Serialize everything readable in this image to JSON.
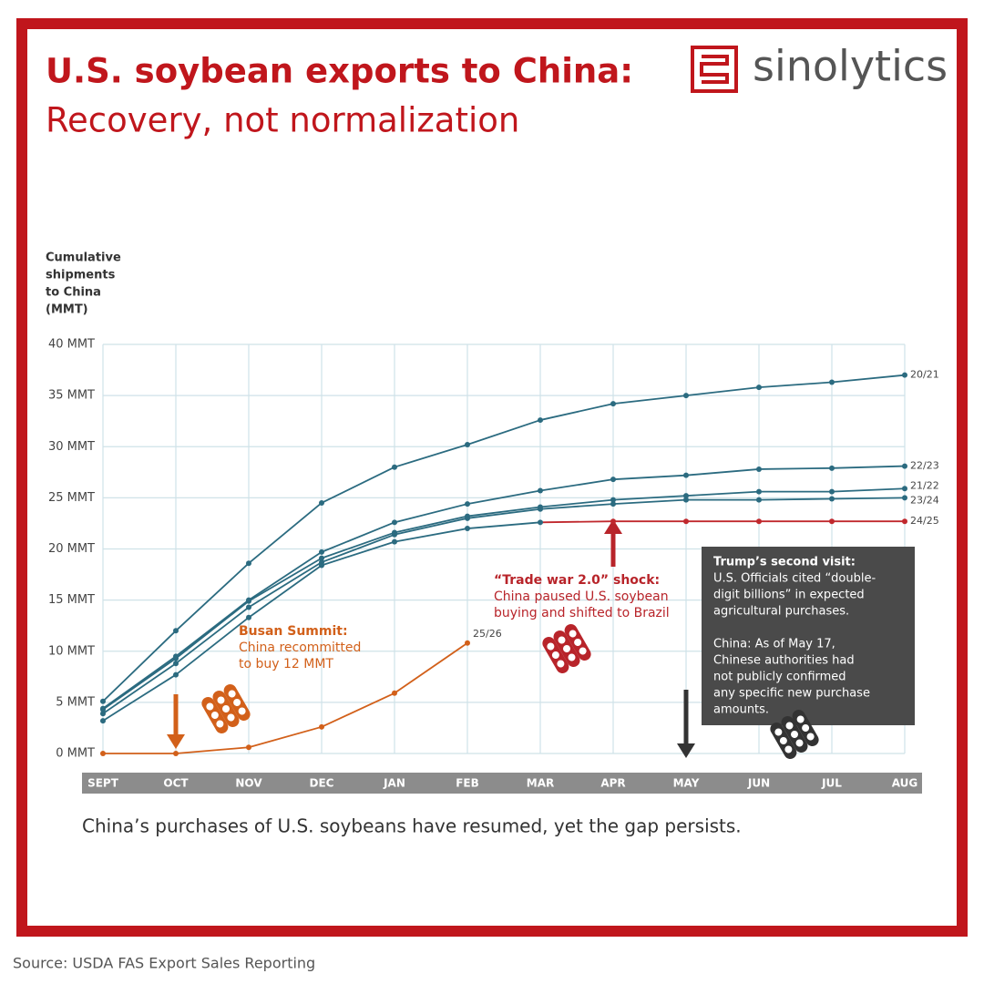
{
  "chart_data": {
    "type": "line",
    "title": "U.S. soybean exports to China:",
    "subtitle": "Recovery, not normalization",
    "brand": "sinolytics",
    "y_label": [
      "Cumulative",
      "shipments",
      "to China",
      "(MMT)"
    ],
    "categories": [
      "SEPT",
      "OCT",
      "NOV",
      "DEC",
      "JAN",
      "FEB",
      "MAR",
      "APR",
      "MAY",
      "JUN",
      "JUL",
      "AUG"
    ],
    "ylim": [
      0,
      40
    ],
    "yticks": [
      {
        "value": 0,
        "label": "0 MMT"
      },
      {
        "value": 5,
        "label": "5 MMT"
      },
      {
        "value": 10,
        "label": "10 MMT"
      },
      {
        "value": 15,
        "label": "15 MMT"
      },
      {
        "value": 20,
        "label": "20 MMT"
      },
      {
        "value": 25,
        "label": "25 MMT"
      },
      {
        "value": 30,
        "label": "30 MMT"
      },
      {
        "value": 35,
        "label": "35 MMT"
      },
      {
        "value": 40,
        "label": "40 MMT"
      }
    ],
    "grid": true,
    "series": [
      {
        "name": "20/21",
        "color": "#2b6b80",
        "values": [
          5.1,
          12.0,
          18.6,
          24.5,
          28.0,
          30.2,
          32.6,
          34.2,
          35.0,
          35.8,
          36.3,
          37.0
        ]
      },
      {
        "name": "22/23",
        "color": "#2b6b80",
        "values": [
          4.4,
          9.5,
          15.0,
          19.7,
          22.6,
          24.4,
          25.7,
          26.8,
          27.2,
          27.8,
          27.9,
          28.1
        ]
      },
      {
        "name": "21/22",
        "color": "#2b6b80",
        "values": [
          4.3,
          9.3,
          14.9,
          19.1,
          21.6,
          23.2,
          24.1,
          24.8,
          25.2,
          25.6,
          25.6,
          25.9
        ]
      },
      {
        "name": "23/24",
        "color": "#2b6b80",
        "values": [
          3.9,
          8.8,
          14.3,
          18.7,
          21.4,
          23.0,
          23.9,
          24.4,
          24.8,
          24.8,
          24.9,
          25.0
        ]
      },
      {
        "name": "24/25",
        "color": "#2b6b80",
        "point_colors": [
          "#2b6b80",
          "#2b6b80",
          "#2b6b80",
          "#2b6b80",
          "#2b6b80",
          "#2b6b80",
          "#2b6b80",
          "#c0282d",
          "#c0282d",
          "#c0282d",
          "#c0282d",
          "#c0282d"
        ],
        "values": [
          3.2,
          7.7,
          13.3,
          18.4,
          20.7,
          22.0,
          22.6,
          22.7,
          22.7,
          22.7,
          22.7,
          22.7
        ]
      },
      {
        "name": "25/26",
        "color": "#d2601a",
        "values": [
          0,
          0,
          0.6,
          2.6,
          5.9,
          10.8,
          null,
          null,
          null,
          null,
          null,
          null
        ]
      }
    ],
    "annotations": [
      {
        "lines": [
          "Busan Summit:",
          "China recommitted",
          "to buy 12 MMT"
        ],
        "color": "#d2601a"
      },
      {
        "lines": [
          "“Trade war 2.0” shock:",
          "China paused U.S. soybean",
          "buying and shifted to Brazil"
        ],
        "color": "#b8242a"
      },
      {
        "lines": [
          "Trump’s second visit:",
          "U.S. Officials cited “double-",
          "digit billions” in expected",
          "agricultural purchases.",
          "",
          "China: As of May 17,",
          "Chinese authorities had",
          "not publicly confirmed",
          "any specific new purchase",
          "amounts."
        ],
        "color": "#ffffff"
      }
    ],
    "caption": "China’s purchases of U.S. soybeans have resumed, yet the gap persists.",
    "source": "Source: USDA FAS Export Sales Reporting"
  }
}
